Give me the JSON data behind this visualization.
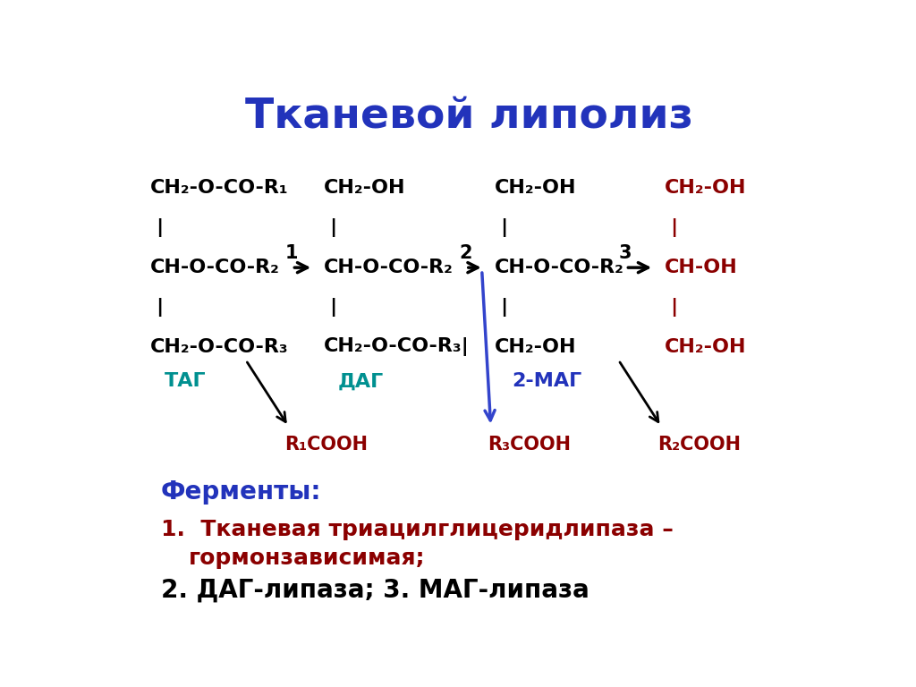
{
  "title": "Тканевой липолиз",
  "title_color": "#2233BB",
  "title_fontsize": 34,
  "bg_color": "#FFFFFF",
  "dark_red": "#8B0000",
  "teal": "#009090",
  "blue_dark": "#2233BB",
  "blue_arrow": "#3344CC",
  "black": "#000000",
  "ferment_title": "Ферменты:",
  "ferment1_prefix": "1.",
  "ferment1_text": " Тканевая триацилглицеридлипаза – гормонзависимая;",
  "ferment1_line2": "      гормонзависимая;",
  "ferment2": "2. ДАГ-липаза; 3. МАГ-липаза"
}
